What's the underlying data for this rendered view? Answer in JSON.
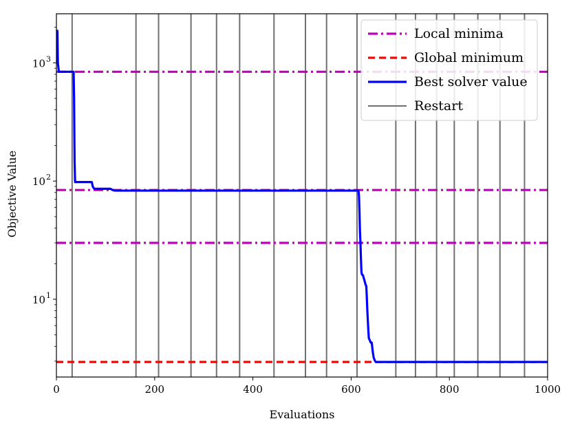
{
  "chart_data": {
    "type": "line",
    "title": "",
    "xlabel": "Evaluations",
    "ylabel": "Objective Value",
    "xlim": [
      0,
      1000
    ],
    "ylim": [
      2.2,
      2600
    ],
    "yscale": "log",
    "grid": false,
    "legend_position": "top-right",
    "x_ticks": [
      0,
      200,
      400,
      600,
      800,
      1000
    ],
    "x_tick_labels": [
      "0",
      "200",
      "400",
      "600",
      "800",
      "1000"
    ],
    "y_ticks": [
      10,
      100,
      1000
    ],
    "y_tick_bases": [
      "10",
      "10",
      "10"
    ],
    "y_tick_exponents": [
      "1",
      "2",
      "3"
    ],
    "series": [
      {
        "name": "Local minima",
        "style": "dashdot",
        "color": "#bf00bf",
        "lines": [
          840,
          84,
          30
        ]
      },
      {
        "name": "Global minimum",
        "style": "dashed",
        "color": "#ff0000",
        "lines": [
          2.95
        ]
      },
      {
        "name": "Best solver value",
        "style": "solid",
        "color": "#0000ff",
        "x": [
          1,
          2,
          3,
          5,
          35,
          36,
          37,
          38,
          72,
          74,
          76,
          78,
          110,
          112,
          116,
          120,
          200,
          400,
          600,
          615,
          616,
          617,
          618,
          619,
          620,
          621,
          622,
          624,
          627,
          629,
          631,
          633,
          635,
          636,
          638,
          640,
          642,
          644,
          646,
          648,
          650,
          655,
          700,
          800,
          1000
        ],
        "y": [
          1900,
          1850,
          1000,
          840,
          840,
          500,
          150,
          98,
          98,
          90,
          87,
          86,
          86,
          85,
          83.5,
          83,
          83,
          83,
          83,
          83,
          75,
          55,
          37,
          30,
          22,
          17,
          16.2,
          16,
          14.5,
          13.5,
          12.8,
          8,
          5.5,
          4.7,
          4.5,
          4.3,
          4.3,
          3.6,
          3.2,
          3.05,
          2.95,
          2.95,
          2.95,
          2.95,
          2.95
        ]
      },
      {
        "name": "Restart",
        "style": "solid",
        "color": "#707070",
        "lines": [
          32,
          162,
          208,
          274,
          326,
          373,
          443,
          507,
          550,
          612,
          691,
          731,
          774,
          810,
          858,
          903,
          953
        ]
      }
    ]
  }
}
